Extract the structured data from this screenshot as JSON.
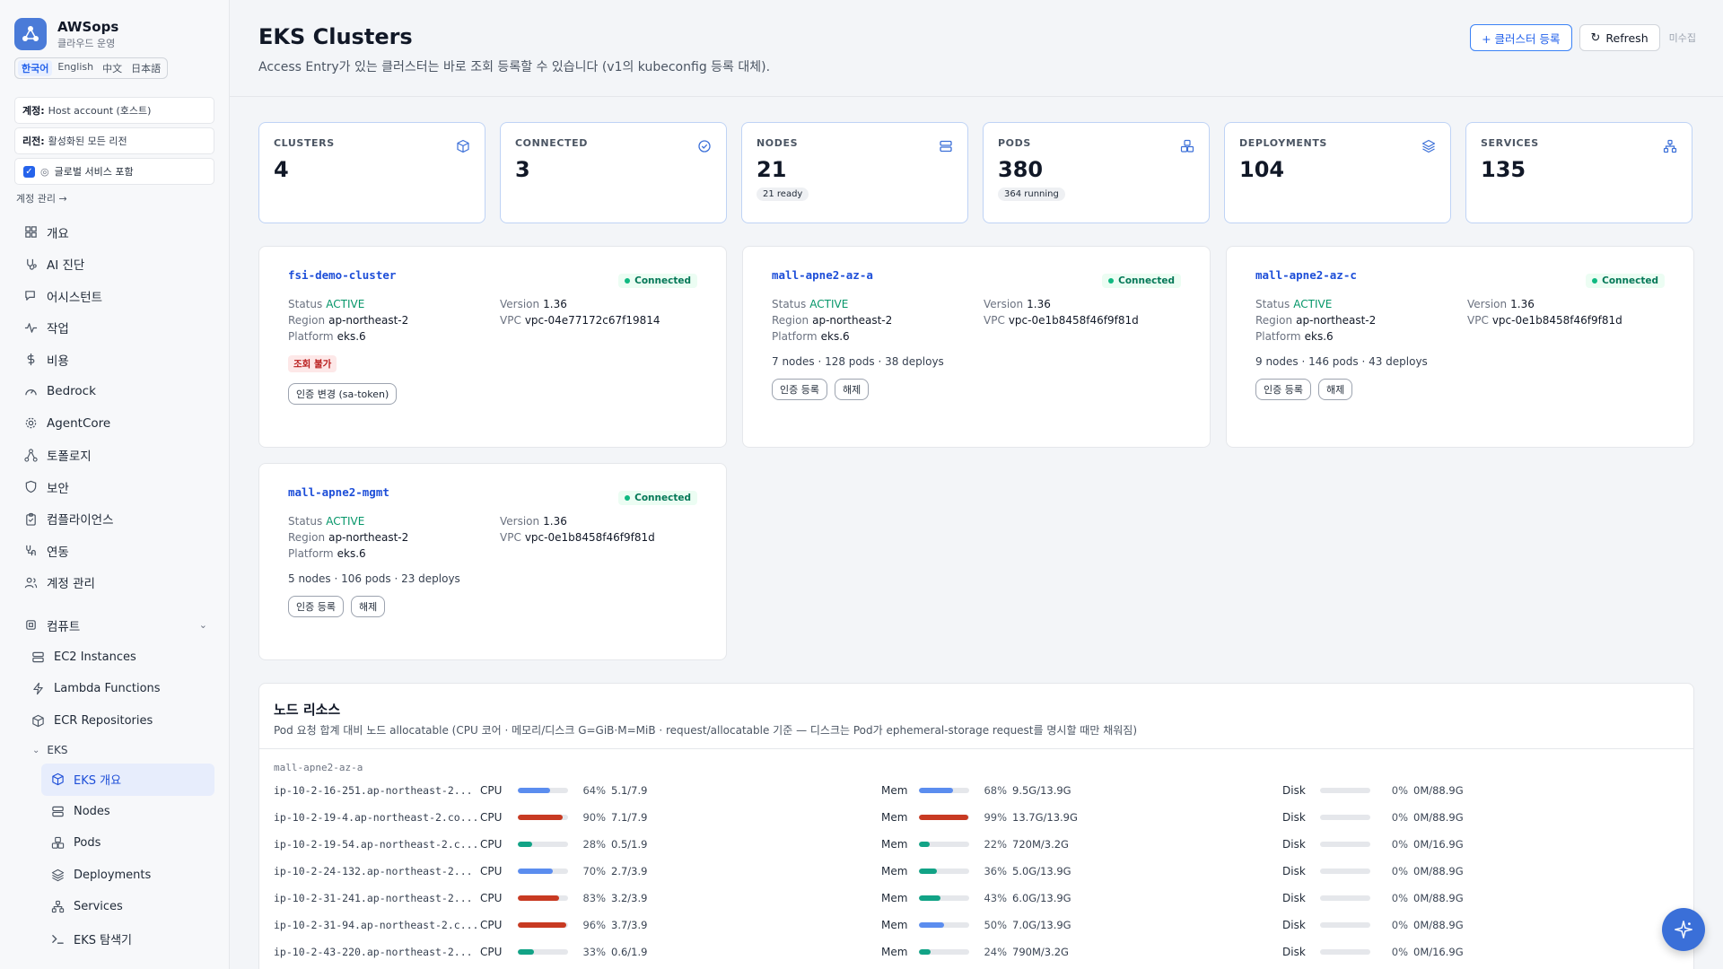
{
  "app": {
    "name": "AWSops",
    "subtitle": "클라우드 운영",
    "languages": [
      "한국어",
      "English",
      "中文",
      "日本語"
    ],
    "active_language": "한국어"
  },
  "sidebar": {
    "account_label": "계정:",
    "account_value": "Host account (호스트)",
    "region_label": "리전:",
    "region_value": "활성화된 모든 리전",
    "global_services": "글로벌 서비스 포함",
    "manage_accounts": "계정 관리 →",
    "nav": [
      {
        "label": "개요",
        "icon": "grid-icon"
      },
      {
        "label": "AI 진단",
        "icon": "stethoscope-icon"
      },
      {
        "label": "어시스턴트",
        "icon": "chat-icon"
      },
      {
        "label": "작업",
        "icon": "activity-icon"
      },
      {
        "label": "비용",
        "icon": "dollar-icon"
      },
      {
        "label": "Bedrock",
        "icon": "gauge-icon"
      },
      {
        "label": "AgentCore",
        "icon": "gear-icon"
      },
      {
        "label": "토폴로지",
        "icon": "topology-icon"
      },
      {
        "label": "보안",
        "icon": "shield-icon"
      },
      {
        "label": "컴플라이언스",
        "icon": "clipboard-icon"
      },
      {
        "label": "연동",
        "icon": "link-icon"
      },
      {
        "label": "계정 관리",
        "icon": "users-icon"
      }
    ],
    "compute_group": "컴퓨트",
    "compute_items": [
      {
        "label": "EC2 Instances",
        "icon": "server-icon"
      },
      {
        "label": "Lambda Functions",
        "icon": "lambda-icon"
      },
      {
        "label": "ECR Repositories",
        "icon": "box-icon"
      }
    ],
    "eks_group": "EKS",
    "eks_items": [
      {
        "label": "EKS 개요",
        "icon": "box-icon",
        "active": true
      },
      {
        "label": "Nodes",
        "icon": "server-icon"
      },
      {
        "label": "Pods",
        "icon": "boxes-icon"
      },
      {
        "label": "Deployments",
        "icon": "layers-icon"
      },
      {
        "label": "Services",
        "icon": "network-icon"
      },
      {
        "label": "EKS 탐색기",
        "icon": "terminal-icon"
      }
    ]
  },
  "header": {
    "title": "EKS Clusters",
    "subtitle": "Access Entry가 있는 클러스터는 바로 조회 등록할 수 있습니다 (v1의 kubeconfig 등록 대체).",
    "register_button": "+ 클러스터 등록",
    "refresh_button": "Refresh",
    "note": "미수집"
  },
  "stats": [
    {
      "label": "CLUSTERS",
      "value": "4",
      "icon": "box-icon",
      "badge": ""
    },
    {
      "label": "CONNECTED",
      "value": "3",
      "icon": "check-circle-icon",
      "badge": ""
    },
    {
      "label": "NODES",
      "value": "21",
      "icon": "server-icon",
      "badge": "21 ready"
    },
    {
      "label": "PODS",
      "value": "380",
      "icon": "boxes-icon",
      "badge": "364 running"
    },
    {
      "label": "DEPLOYMENTS",
      "value": "104",
      "icon": "layers-icon",
      "badge": ""
    },
    {
      "label": "SERVICES",
      "value": "135",
      "icon": "network-icon",
      "badge": ""
    }
  ],
  "clusters": [
    {
      "name": "fsi-demo-cluster",
      "badge": "Connected",
      "status": "ACTIVE",
      "region": "ap-northeast-2",
      "platform": "eks.6",
      "version": "1.36",
      "vpc": "vpc-04e77172c67f19814",
      "error": "조회 불가",
      "summary": "",
      "buttons": [
        "인증 변경 (sa-token)"
      ]
    },
    {
      "name": "mall-apne2-az-a",
      "badge": "Connected",
      "status": "ACTIVE",
      "region": "ap-northeast-2",
      "platform": "eks.6",
      "version": "1.36",
      "vpc": "vpc-0e1b8458f46f9f81d",
      "error": "",
      "summary": "7 nodes · 128 pods · 38 deploys",
      "buttons": [
        "인증 등록",
        "해제"
      ]
    },
    {
      "name": "mall-apne2-az-c",
      "badge": "Connected",
      "status": "ACTIVE",
      "region": "ap-northeast-2",
      "platform": "eks.6",
      "version": "1.36",
      "vpc": "vpc-0e1b8458f46f9f81d",
      "error": "",
      "summary": "9 nodes · 146 pods · 43 deploys",
      "buttons": [
        "인증 등록",
        "해제"
      ]
    },
    {
      "name": "mall-apne2-mgmt",
      "badge": "Connected",
      "status": "ACTIVE",
      "region": "ap-northeast-2",
      "platform": "eks.6",
      "version": "1.36",
      "vpc": "vpc-0e1b8458f46f9f81d",
      "error": "",
      "summary": "5 nodes · 106 pods · 23 deploys",
      "buttons": [
        "인증 등록",
        "해제"
      ]
    }
  ],
  "labels": {
    "status": "Status",
    "region": "Region",
    "platform": "Platform",
    "version": "Version",
    "vpc": "VPC"
  },
  "node_panel": {
    "title": "노드 리소스",
    "subtitle": "Pod 요청 합계 대비 노드 allocatable (CPU 코어 · 메모리/디스크 G=GiB·M=MiB · request/allocatable 기준 — 디스크는 Pod가 ephemeral-storage request를 명시할 때만 채워짐)",
    "cluster": "mall-apne2-az-a",
    "metric_labels": {
      "cpu": "CPU",
      "mem": "Mem",
      "disk": "Disk"
    },
    "colors": {
      "blue": "#5b8def",
      "red": "#c83a22",
      "green": "#12a386"
    },
    "rows": [
      {
        "name": "ip-10-2-16-251.ap-northeast-2...",
        "cpu_pct": 64,
        "cpu_color": "blue",
        "cpu": "5.1/7.9",
        "mem_pct": 68,
        "mem_color": "blue",
        "mem": "9.5G/13.9G",
        "disk_pct": 0,
        "disk": "0M/88.9G"
      },
      {
        "name": "ip-10-2-19-4.ap-northeast-2.co...",
        "cpu_pct": 90,
        "cpu_color": "red",
        "cpu": "7.1/7.9",
        "mem_pct": 99,
        "mem_color": "red",
        "mem": "13.7G/13.9G",
        "disk_pct": 0,
        "disk": "0M/88.9G"
      },
      {
        "name": "ip-10-2-19-54.ap-northeast-2.c...",
        "cpu_pct": 28,
        "cpu_color": "green",
        "cpu": "0.5/1.9",
        "mem_pct": 22,
        "mem_color": "green",
        "mem": "720M/3.2G",
        "disk_pct": 0,
        "disk": "0M/16.9G"
      },
      {
        "name": "ip-10-2-24-132.ap-northeast-2...",
        "cpu_pct": 70,
        "cpu_color": "blue",
        "cpu": "2.7/3.9",
        "mem_pct": 36,
        "mem_color": "green",
        "mem": "5.0G/13.9G",
        "disk_pct": 0,
        "disk": "0M/88.9G"
      },
      {
        "name": "ip-10-2-31-241.ap-northeast-2...",
        "cpu_pct": 83,
        "cpu_color": "red",
        "cpu": "3.2/3.9",
        "mem_pct": 43,
        "mem_color": "green",
        "mem": "6.0G/13.9G",
        "disk_pct": 0,
        "disk": "0M/88.9G"
      },
      {
        "name": "ip-10-2-31-94.ap-northeast-2.c...",
        "cpu_pct": 96,
        "cpu_color": "red",
        "cpu": "3.7/3.9",
        "mem_pct": 50,
        "mem_color": "blue",
        "mem": "7.0G/13.9G",
        "disk_pct": 0,
        "disk": "0M/88.9G"
      },
      {
        "name": "ip-10-2-43-220.ap-northeast-2...",
        "cpu_pct": 33,
        "cpu_color": "green",
        "cpu": "0.6/1.9",
        "mem_pct": 24,
        "mem_color": "green",
        "mem": "790M/3.2G",
        "disk_pct": 0,
        "disk": "0M/16.9G"
      }
    ]
  }
}
